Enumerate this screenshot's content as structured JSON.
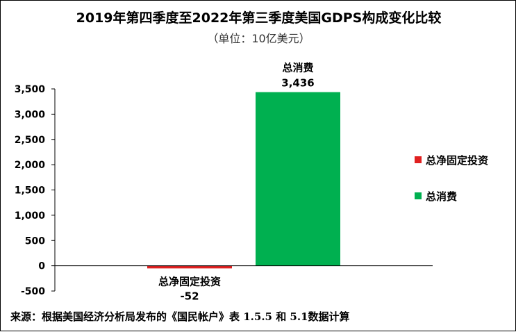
{
  "chart_data": {
    "type": "bar",
    "title": "2019年第四季度至2022年第三季度美国GDPS构成变化比较",
    "subtitle": "（单位：10亿美元）",
    "categories": [
      "总净固定投资",
      "总消费"
    ],
    "values": [
      -52,
      3436
    ],
    "value_labels": [
      "-52",
      "3,436"
    ],
    "colors": [
      "#e02020",
      "#00b050"
    ],
    "ylim": [
      -500,
      3500
    ],
    "yticks": [
      -500,
      0,
      500,
      1000,
      1500,
      2000,
      2500,
      3000,
      3500
    ],
    "ytick_labels": [
      "-500",
      "0",
      "500",
      "1,000",
      "1,500",
      "2,000",
      "2,500",
      "3,000",
      "3,500"
    ],
    "grid": false,
    "legend": {
      "position": "right",
      "entries": [
        {
          "label": "总净固定投资",
          "color": "#e02020"
        },
        {
          "label": "总消费",
          "color": "#00b050"
        }
      ]
    }
  },
  "source": "来源：根据美国经济分析局发布的《国民帐户》表 1.5.5 和 5.1数据计算"
}
